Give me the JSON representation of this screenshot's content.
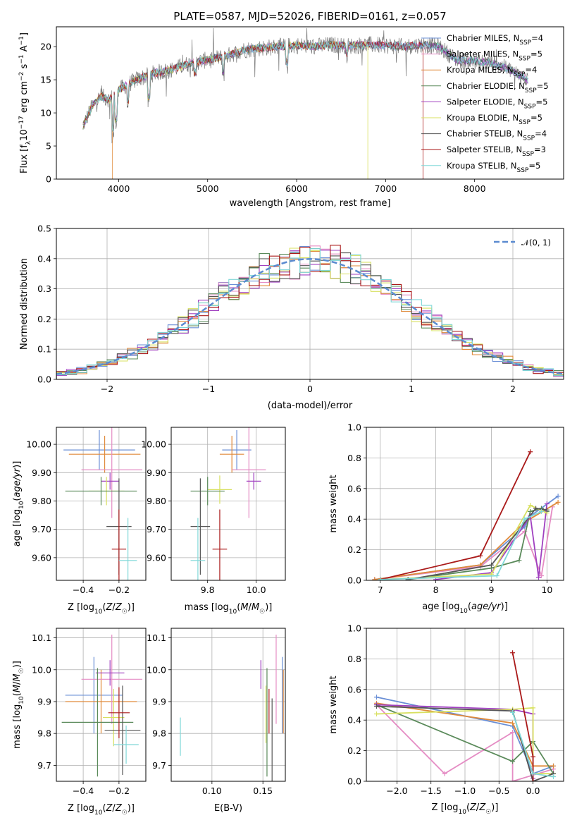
{
  "figure": {
    "title": "PLATE=0587, MJD=52026, FIBERID=0161, z=0.057",
    "colors": {
      "Chabrier MILES": "#6a8fd6",
      "Salpeter MILES": "#e58cc4",
      "Kroupa MILES": "#e08a3a",
      "Chabrier ELODIE": "#5a8a5a",
      "Salpeter ELODIE": "#a040c0",
      "Kroupa ELODIE": "#d8e060",
      "Chabrier STELIB": "#555555",
      "Salpeter STELIB": "#aa1a1a",
      "Kroupa STELIB": "#80d8d8"
    }
  },
  "chart_data": [
    {
      "id": "spectrum",
      "type": "line",
      "title": "PLATE=0587, MJD=52026, FIBERID=0161, z=0.057",
      "xlabel": "wavelength [Angstrom, rest frame]",
      "ylabel": "Flux [f_λ 10^-17 erg cm^-2 s^-1 A^-1]",
      "xlim": [
        3300,
        9000
      ],
      "ylim": [
        0,
        23
      ],
      "xticks": [
        4000,
        5000,
        6000,
        7000,
        8000
      ],
      "yticks": [
        0,
        5,
        10,
        15,
        20
      ],
      "grid": false,
      "legend_position": "right",
      "legend": [
        {
          "name": "Chabrier MILES",
          "nssp": "4"
        },
        {
          "name": "Salpeter MILES",
          "nssp": "5"
        },
        {
          "name": "Kroupa MILES",
          "nssp": "4"
        },
        {
          "name": "Chabrier ELODIE",
          "nssp": "5"
        },
        {
          "name": "Salpeter ELODIE",
          "nssp": "5"
        },
        {
          "name": "Kroupa ELODIE",
          "nssp": "5"
        },
        {
          "name": "Chabrier STELIB",
          "nssp": "4"
        },
        {
          "name": "Salpeter STELIB",
          "nssp": "3"
        },
        {
          "name": "Kroupa STELIB",
          "nssp": "5"
        }
      ],
      "continuum": [
        [
          3600,
          8
        ],
        [
          3700,
          11
        ],
        [
          3800,
          12.5
        ],
        [
          3900,
          12
        ],
        [
          4000,
          13.5
        ],
        [
          4200,
          15
        ],
        [
          4400,
          16
        ],
        [
          4600,
          16.5
        ],
        [
          4800,
          17.5
        ],
        [
          5000,
          18
        ],
        [
          5200,
          18.5
        ],
        [
          5400,
          19.5
        ],
        [
          5600,
          19.8
        ],
        [
          5800,
          20
        ],
        [
          6000,
          20.2
        ],
        [
          6200,
          20
        ],
        [
          6400,
          20.3
        ],
        [
          6600,
          20.1
        ],
        [
          6800,
          20.3
        ],
        [
          7000,
          20.2
        ],
        [
          7200,
          20
        ],
        [
          7400,
          20.3
        ],
        [
          7600,
          20
        ],
        [
          7700,
          19
        ],
        [
          7800,
          18
        ],
        [
          8000,
          17.8
        ],
        [
          8200,
          17.5
        ],
        [
          8400,
          16.5
        ],
        [
          8600,
          15
        ]
      ],
      "model_cutoffs": [
        {
          "series": "Kroupa MILES",
          "x": 3930
        },
        {
          "series": "Kroupa ELODIE",
          "x": 6800
        },
        {
          "series": "Salpeter STELIB",
          "x": 7420
        }
      ]
    },
    {
      "id": "residuals",
      "type": "histogram",
      "xlabel": "(data-model)/error",
      "ylabel": "Normed distribution",
      "xlim": [
        -2.5,
        2.5
      ],
      "ylim": [
        0,
        0.5
      ],
      "xticks": [
        -2,
        -1,
        0,
        1,
        2
      ],
      "xtick_labels": [
        "−2",
        "−1",
        "0",
        "1",
        "2"
      ],
      "yticks": [
        0.0,
        0.1,
        0.2,
        0.3,
        0.4,
        0.5
      ],
      "grid": true,
      "legend_position": "top-right",
      "gauss_label": "𝒩(0, 1)",
      "gauss_color": "#5b8bd0",
      "bin_width": 0.1
    },
    {
      "id": "z-age",
      "type": "scatter",
      "xlabel": "Z [log10(Z/Z☉)]",
      "ylabel": "age [log10(age/yr)]",
      "xlim": [
        -0.55,
        -0.05
      ],
      "ylim": [
        9.52,
        10.06
      ],
      "xticks": [
        -0.4,
        -0.2
      ],
      "yticks": [
        9.6,
        9.7,
        9.8,
        9.9,
        10.0
      ],
      "grid": true,
      "points": [
        {
          "series": "Chabrier MILES",
          "x": -0.31,
          "y": 9.98,
          "xerr": 0.2,
          "yerr": 0.07
        },
        {
          "series": "Kroupa MILES",
          "x": -0.28,
          "y": 9.965,
          "xerr": 0.2,
          "yerr": 0.065
        },
        {
          "series": "Salpeter MILES",
          "x": -0.24,
          "y": 9.91,
          "xerr": 0.17,
          "yerr": 0.17
        },
        {
          "series": "Salpeter ELODIE",
          "x": -0.25,
          "y": 9.87,
          "xerr": 0.05,
          "yerr": 0.03
        },
        {
          "series": "Kroupa ELODIE",
          "x": -0.27,
          "y": 9.835,
          "xerr": 0.1,
          "yerr": 0.05
        },
        {
          "series": "Chabrier ELODIE",
          "x": -0.3,
          "y": 9.835,
          "xerr": 0.2,
          "yerr": 0.05
        },
        {
          "series": "Chabrier STELIB",
          "x": -0.2,
          "y": 9.71,
          "xerr": 0.07,
          "yerr": 0.17
        },
        {
          "series": "Salpeter STELIB",
          "x": -0.2,
          "y": 9.63,
          "xerr": 0.04,
          "yerr": 0.14
        },
        {
          "series": "Kroupa STELIB",
          "x": -0.15,
          "y": 9.59,
          "xerr": 0.05,
          "yerr": 0.15
        }
      ]
    },
    {
      "id": "mass-age",
      "type": "scatter",
      "xlabel": "mass [log10(M/M☉)]",
      "ylabel": "",
      "xlim": [
        9.65,
        10.12
      ],
      "ylim": [
        9.52,
        10.06
      ],
      "xticks": [
        9.8,
        10.0
      ],
      "yticks": [
        9.6,
        9.7,
        9.8,
        9.9,
        10.0
      ],
      "grid": true,
      "points": [
        {
          "series": "Chabrier MILES",
          "x": 9.92,
          "y": 9.98,
          "xerr": 0.06,
          "yerr": 0.07
        },
        {
          "series": "Kroupa MILES",
          "x": 9.9,
          "y": 9.965,
          "xerr": 0.05,
          "yerr": 0.065
        },
        {
          "series": "Salpeter MILES",
          "x": 9.97,
          "y": 9.91,
          "xerr": 0.07,
          "yerr": 0.17
        },
        {
          "series": "Salpeter ELODIE",
          "x": 9.99,
          "y": 9.87,
          "xerr": 0.03,
          "yerr": 0.03
        },
        {
          "series": "Kroupa ELODIE",
          "x": 9.85,
          "y": 9.84,
          "xerr": 0.05,
          "yerr": 0.05
        },
        {
          "series": "Chabrier ELODIE",
          "x": 9.8,
          "y": 9.835,
          "xerr": 0.07,
          "yerr": 0.05
        },
        {
          "series": "Chabrier STELIB",
          "x": 9.77,
          "y": 9.71,
          "xerr": 0.04,
          "yerr": 0.17
        },
        {
          "series": "Salpeter STELIB",
          "x": 9.85,
          "y": 9.63,
          "xerr": 0.03,
          "yerr": 0.14
        },
        {
          "series": "Kroupa STELIB",
          "x": 9.76,
          "y": 9.59,
          "xerr": 0.03,
          "yerr": 0.15
        }
      ]
    },
    {
      "id": "age-weight",
      "type": "line",
      "xlabel": "age [log10(age/yr)]",
      "ylabel": "mass weight",
      "xlim": [
        6.75,
        10.3
      ],
      "ylim": [
        0,
        1
      ],
      "xticks": [
        7,
        8,
        9,
        10
      ],
      "yticks": [
        0.0,
        0.2,
        0.4,
        0.6,
        0.8,
        1.0
      ],
      "grid": true,
      "series": [
        {
          "name": "Chabrier MILES",
          "points": [
            [
              6.9,
              0.005
            ],
            [
              8.8,
              0.1
            ],
            [
              9.6,
              0.35
            ],
            [
              9.7,
              0.42
            ],
            [
              10.2,
              0.55
            ]
          ]
        },
        {
          "name": "Salpeter MILES",
          "points": [
            [
              6.9,
              0.005
            ],
            [
              8.8,
              0.09
            ],
            [
              9.6,
              0.32
            ],
            [
              9.9,
              0.03
            ],
            [
              10.1,
              0.48
            ]
          ]
        },
        {
          "name": "Kroupa MILES",
          "points": [
            [
              6.9,
              0.005
            ],
            [
              8.8,
              0.1
            ],
            [
              9.6,
              0.38
            ],
            [
              10.2,
              0.51
            ]
          ]
        },
        {
          "name": "Chabrier ELODIE",
          "points": [
            [
              7.5,
              0.005
            ],
            [
              9.0,
              0.08
            ],
            [
              9.5,
              0.13
            ],
            [
              9.7,
              0.45
            ],
            [
              9.9,
              0.47
            ],
            [
              10.0,
              0.45
            ]
          ]
        },
        {
          "name": "Salpeter ELODIE",
          "points": [
            [
              8.0,
              0.005
            ],
            [
              9.0,
              0.05
            ],
            [
              9.7,
              0.42
            ],
            [
              9.85,
              0.02
            ],
            [
              10.0,
              0.5
            ]
          ]
        },
        {
          "name": "Kroupa ELODIE",
          "points": [
            [
              7.0,
              0.005
            ],
            [
              9.0,
              0.04
            ],
            [
              9.7,
              0.49
            ],
            [
              10.0,
              0.44
            ]
          ]
        },
        {
          "name": "Chabrier STELIB",
          "points": [
            [
              7.5,
              0.005
            ],
            [
              9.0,
              0.1
            ],
            [
              9.8,
              0.47
            ],
            [
              10.0,
              0.46
            ]
          ]
        },
        {
          "name": "Salpeter STELIB",
          "points": [
            [
              7.0,
              0.005
            ],
            [
              8.8,
              0.16
            ],
            [
              9.7,
              0.84
            ]
          ]
        },
        {
          "name": "Kroupa STELIB",
          "points": [
            [
              7.0,
              0.005
            ],
            [
              9.1,
              0.03
            ],
            [
              9.6,
              0.4
            ],
            [
              9.9,
              0.45
            ]
          ]
        }
      ]
    },
    {
      "id": "z-mass",
      "type": "scatter",
      "xlabel": "Z [log10(Z/Z☉)]",
      "ylabel": "mass [log10(M/M☉)]",
      "xlim": [
        -0.55,
        -0.05
      ],
      "ylim": [
        9.65,
        10.13
      ],
      "xticks": [
        -0.4,
        -0.2
      ],
      "yticks": [
        9.7,
        9.8,
        9.9,
        10.0,
        10.1
      ],
      "grid": true,
      "points": [
        {
          "series": "Chabrier MILES",
          "x": -0.34,
          "y": 9.92,
          "xerr": 0.16,
          "yerr": 0.12
        },
        {
          "series": "Kroupa MILES",
          "x": -0.3,
          "y": 9.9,
          "xerr": 0.2,
          "yerr": 0.1
        },
        {
          "series": "Salpeter MILES",
          "x": -0.24,
          "y": 9.97,
          "xerr": 0.17,
          "yerr": 0.14
        },
        {
          "series": "Salpeter ELODIE",
          "x": -0.25,
          "y": 9.99,
          "xerr": 0.08,
          "yerr": 0.04
        },
        {
          "series": "Kroupa ELODIE",
          "x": -0.23,
          "y": 9.85,
          "xerr": 0.06,
          "yerr": 0.09
        },
        {
          "series": "Chabrier ELODIE",
          "x": -0.32,
          "y": 9.835,
          "xerr": 0.2,
          "yerr": 0.17
        },
        {
          "series": "Chabrier STELIB",
          "x": -0.18,
          "y": 9.81,
          "xerr": 0.1,
          "yerr": 0.14
        },
        {
          "series": "Salpeter STELIB",
          "x": -0.2,
          "y": 9.865,
          "xerr": 0.06,
          "yerr": 0.08
        },
        {
          "series": "Kroupa STELIB",
          "x": -0.16,
          "y": 9.765,
          "xerr": 0.07,
          "yerr": 0.06
        }
      ]
    },
    {
      "id": "ebv-mass",
      "type": "scatter",
      "xlabel": "E(B-V)",
      "ylabel": "",
      "xlim": [
        0.06,
        0.172
      ],
      "ylim": [
        9.65,
        10.13
      ],
      "xticks": [
        0.1,
        0.15
      ],
      "xtick_labels": [
        "0.10",
        "0.15"
      ],
      "yticks": [
        9.7,
        9.8,
        9.9,
        10.0,
        10.1
      ],
      "grid": true,
      "points": [
        {
          "series": "Kroupa STELIB",
          "x": 0.069,
          "y": 9.79,
          "yerr": 0.06
        },
        {
          "series": "Salpeter ELODIE",
          "x": 0.148,
          "y": 9.985,
          "yerr": 0.045
        },
        {
          "series": "Kroupa ELODIE",
          "x": 0.153,
          "y": 9.86,
          "yerr": 0.09
        },
        {
          "series": "Chabrier ELODIE",
          "x": 0.154,
          "y": 9.835,
          "yerr": 0.17
        },
        {
          "series": "Salpeter STELIB",
          "x": 0.156,
          "y": 9.87,
          "yerr": 0.07
        },
        {
          "series": "Chabrier STELIB",
          "x": 0.159,
          "y": 9.77,
          "yerr": 0.14
        },
        {
          "series": "Salpeter MILES",
          "x": 0.163,
          "y": 9.97,
          "yerr": 0.14
        },
        {
          "series": "Chabrier MILES",
          "x": 0.169,
          "y": 9.92,
          "yerr": 0.12
        },
        {
          "series": "Kroupa MILES",
          "x": 0.17,
          "y": 9.9,
          "yerr": 0.1
        }
      ]
    },
    {
      "id": "z-weight",
      "type": "line",
      "xlabel": "Z [log10(Z/Z☉)]",
      "ylabel": "mass weight",
      "xlim": [
        -2.45,
        0.45
      ],
      "ylim": [
        0,
        1
      ],
      "xticks": [
        -2.0,
        -1.5,
        -1.0,
        -0.5,
        0.0
      ],
      "xtick_labels": [
        "−2.0",
        "−1.5",
        "−1.0",
        "−0.5",
        "0.0"
      ],
      "yticks": [
        0.0,
        0.2,
        0.4,
        0.6,
        0.8,
        1.0
      ],
      "grid": true,
      "series": [
        {
          "name": "Chabrier MILES",
          "points": [
            [
              -2.3,
              0.55
            ],
            [
              -0.3,
              0.36
            ],
            [
              0.0,
              0.05
            ],
            [
              0.3,
              0.1
            ]
          ]
        },
        {
          "name": "Salpeter MILES",
          "points": [
            [
              -2.3,
              0.5
            ],
            [
              -1.3,
              0.05
            ],
            [
              -0.3,
              0.32
            ],
            [
              -0.3,
              0.0
            ],
            [
              0.3,
              0.08
            ]
          ]
        },
        {
          "name": "Kroupa MILES",
          "points": [
            [
              -2.3,
              0.51
            ],
            [
              -0.3,
              0.38
            ],
            [
              0.0,
              0.1
            ],
            [
              0.3,
              0.1
            ]
          ]
        },
        {
          "name": "Chabrier ELODIE",
          "points": [
            [
              -2.3,
              0.5
            ],
            [
              -0.3,
              0.13
            ],
            [
              0.0,
              0.26
            ],
            [
              0.3,
              0.05
            ]
          ]
        },
        {
          "name": "Salpeter ELODIE",
          "points": [
            [
              -2.3,
              0.5
            ],
            [
              -0.3,
              0.47
            ],
            [
              0.0,
              0.44
            ],
            [
              0.0,
              0.02
            ]
          ]
        },
        {
          "name": "Kroupa ELODIE",
          "points": [
            [
              -2.3,
              0.44
            ],
            [
              -0.3,
              0.47
            ],
            [
              0.0,
              0.48
            ],
            [
              0.0,
              0.05
            ],
            [
              0.3,
              0.05
            ]
          ]
        },
        {
          "name": "Chabrier STELIB",
          "points": [
            [
              -2.3,
              0.49
            ],
            [
              -0.3,
              0.46
            ],
            [
              0.0,
              0.0
            ],
            [
              0.3,
              0.05
            ]
          ]
        },
        {
          "name": "Salpeter STELIB",
          "points": [
            [
              -0.3,
              0.84
            ],
            [
              0.0,
              0.16
            ],
            [
              0.0,
              0.0
            ]
          ]
        },
        {
          "name": "Kroupa STELIB",
          "points": [
            [
              -0.3,
              0.45
            ],
            [
              0.0,
              0.05
            ],
            [
              0.3,
              0.03
            ]
          ]
        }
      ]
    }
  ]
}
